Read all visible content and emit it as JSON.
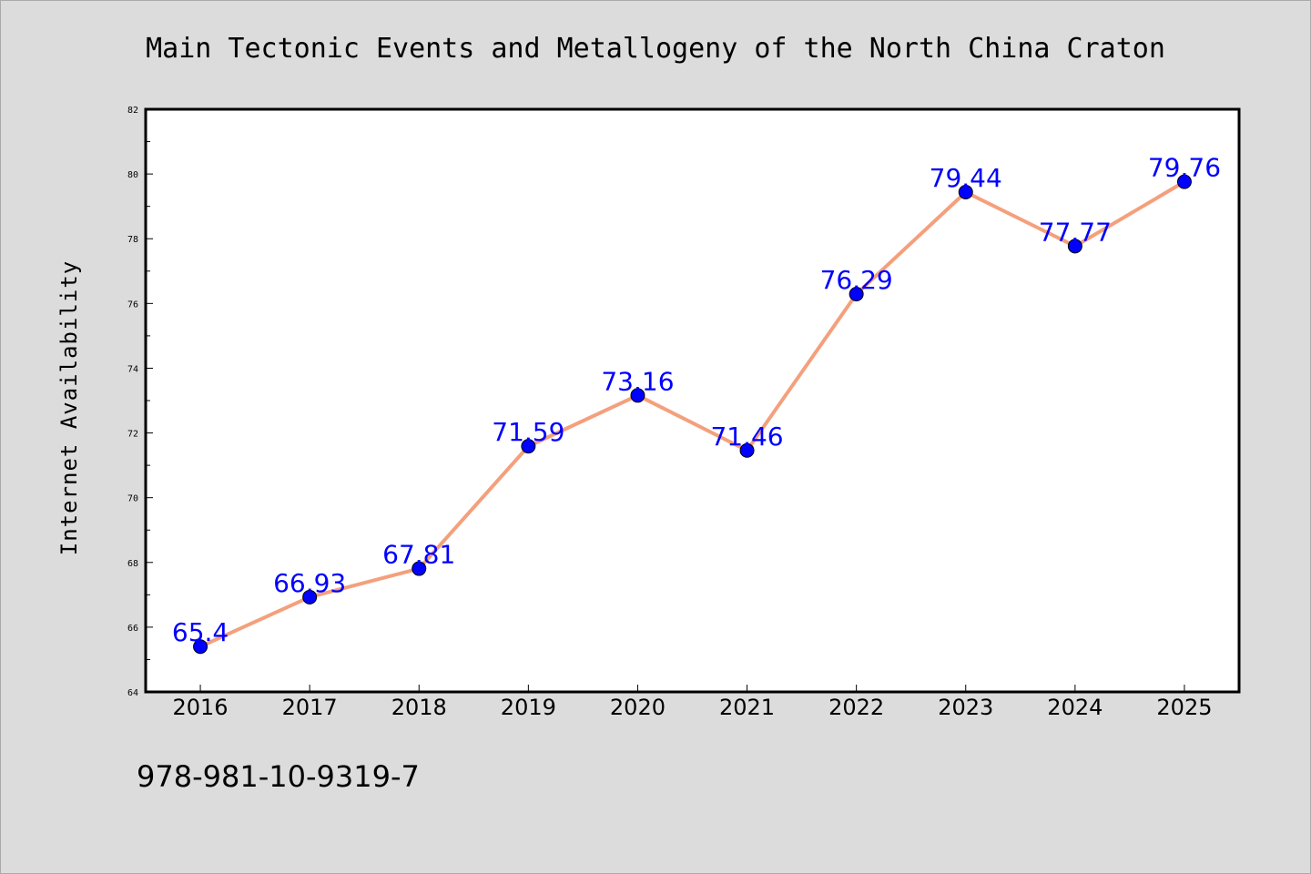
{
  "chart_data": {
    "type": "line",
    "title": "Main Tectonic Events and Metallogeny of the North China Craton",
    "xlabel": "",
    "ylabel": "Internet Availability",
    "x": [
      "2016",
      "2017",
      "2018",
      "2019",
      "2020",
      "2021",
      "2022",
      "2023",
      "2024",
      "2025"
    ],
    "series": [
      {
        "values": [
          65.4,
          66.93,
          67.81,
          71.59,
          73.16,
          71.46,
          76.29,
          79.44,
          77.77,
          79.76
        ],
        "labels": [
          "65.4",
          "66.93",
          "67.81",
          "71.59",
          "73.16",
          "71.46",
          "76.29",
          "79.44",
          "77.77",
          "79.76"
        ],
        "line_color": "#f4a07c",
        "marker_color": "#0000ff"
      }
    ],
    "ylim": [
      64,
      82
    ],
    "yticks": [
      "64",
      "66",
      "68",
      "70",
      "72",
      "74",
      "76",
      "78",
      "80",
      "82"
    ],
    "grid": false,
    "legend": "none"
  },
  "footnote": "978-981-10-9319-7",
  "colors": {
    "background": "#dcdcdc",
    "plot_background": "#ffffff",
    "axis": "#000000"
  }
}
